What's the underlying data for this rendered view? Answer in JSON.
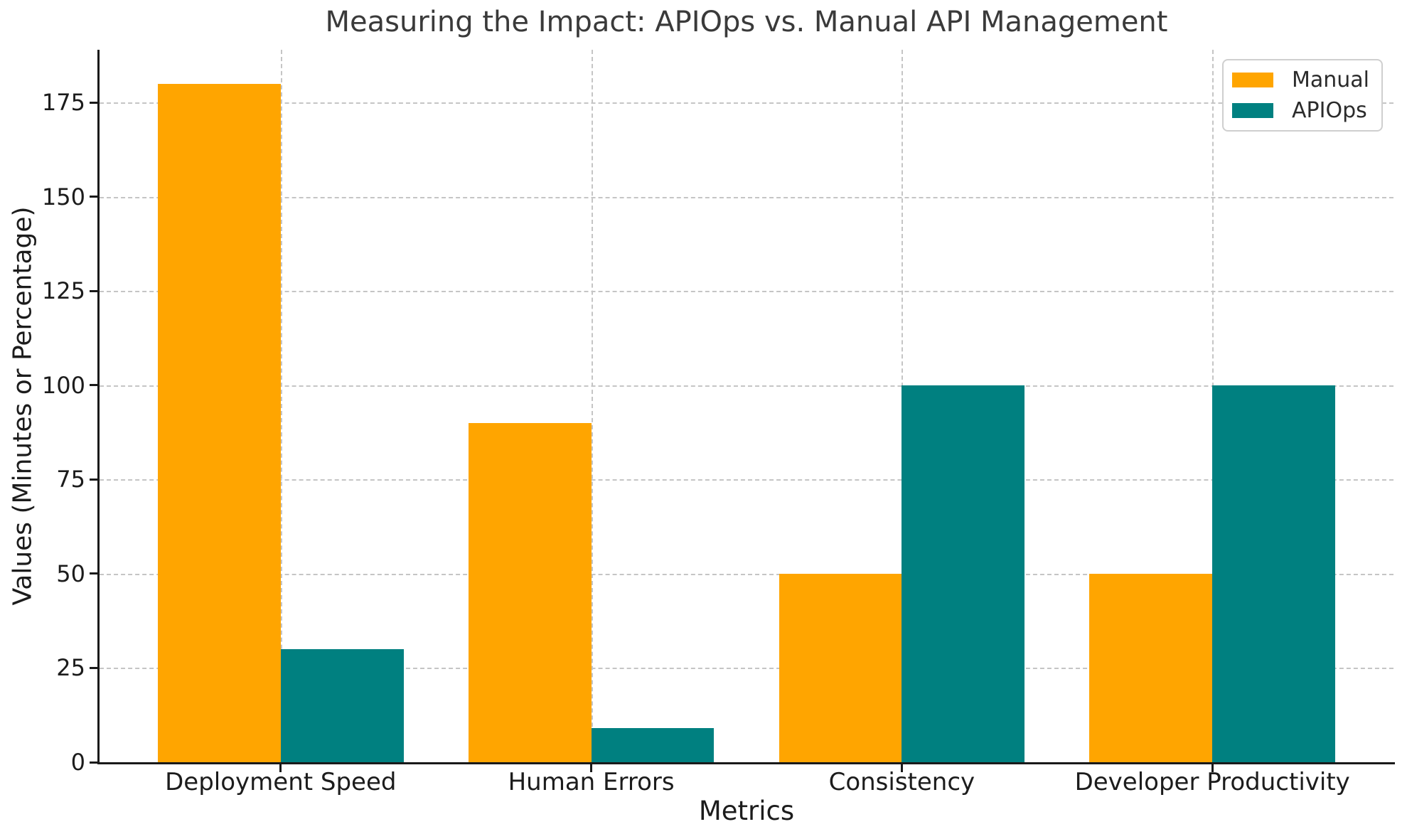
{
  "chart_data": {
    "type": "bar",
    "title": "Measuring the Impact: APIOps vs. Manual API Management",
    "xlabel": "Metrics",
    "ylabel": "Values (Minutes or Percentage)",
    "categories": [
      "Deployment Speed",
      "Human Errors",
      "Consistency",
      "Developer Productivity"
    ],
    "series": [
      {
        "name": "Manual",
        "color": "#FFA500",
        "values": [
          180,
          90,
          50,
          50
        ]
      },
      {
        "name": "APIOps",
        "color": "#008080",
        "values": [
          30,
          9,
          100,
          100
        ]
      }
    ],
    "yticks": [
      0,
      25,
      50,
      75,
      100,
      125,
      150,
      175
    ],
    "ylim": [
      0,
      189
    ],
    "grid": "dashed gray, horizontal at yticks and vertical at category centers",
    "legend_position": "upper right",
    "legend_labels": [
      "Manual",
      "APIOps"
    ]
  },
  "style_colors": {
    "manual_bar": "#FFA500",
    "apiops_bar": "#008080",
    "grid_line": "#c5c5c5",
    "spine": "#1a1a1a",
    "title_text": "#3a3a3a",
    "tick_text": "#1c1c1c",
    "legend_border": "#cfcfcf"
  }
}
